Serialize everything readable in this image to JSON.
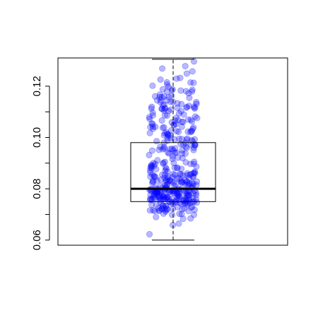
{
  "chart_data": {
    "type": "scatter",
    "subtype": "boxplot-with-jitter",
    "title": "",
    "xlabel": "",
    "ylabel": "",
    "ylim": [
      0.058,
      0.131
    ],
    "yticks": [
      0.06,
      0.07,
      0.08,
      0.09,
      0.1,
      0.11,
      0.12
    ],
    "ytick_labels": [
      "0.06",
      "",
      "0.08",
      "",
      "0.10",
      "",
      "0.12"
    ],
    "box": {
      "min": 0.06,
      "q1": 0.075,
      "median": 0.08,
      "q3": 0.098,
      "max": 0.1305
    },
    "point_count": 400,
    "point_color": "#0000ff",
    "point_alpha": 0.28,
    "grid": false,
    "legend": "none"
  }
}
